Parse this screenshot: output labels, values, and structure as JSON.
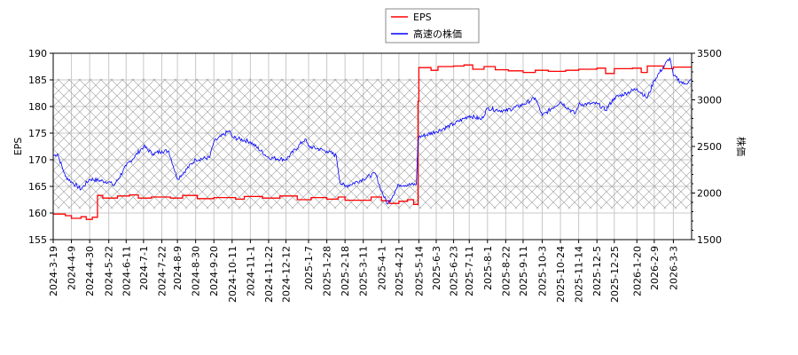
{
  "chart_data": {
    "type": "line",
    "title": "",
    "xlabel": "",
    "ylabel_left": "EPS",
    "ylabel_right": "株価",
    "ylim_left": [
      155,
      190
    ],
    "ylim_right": [
      1500,
      3500
    ],
    "yticks_left": [
      155,
      160,
      165,
      170,
      175,
      180,
      185,
      190
    ],
    "yticks_right": [
      1500,
      2000,
      2500,
      3000,
      3500
    ],
    "xlim": [
      "2024-3-19",
      "2026-3-24"
    ],
    "xticks": [
      "2024-3-19",
      "2024-4-9",
      "2024-4-30",
      "2024-5-22",
      "2024-6-11",
      "2024-7-1",
      "2024-7-22",
      "2024-8-9",
      "2024-8-30",
      "2024-9-20",
      "2024-10-11",
      "2024-11-1",
      "2024-11-22",
      "2024-12-12",
      "2025-1-7",
      "2025-1-28",
      "2025-2-18",
      "2025-3-11",
      "2025-4-1",
      "2025-4-21",
      "2025-5-14",
      "2025-6-3",
      "2025-6-23",
      "2025-7-11",
      "2025-8-1",
      "2025-8-22",
      "2025-9-11",
      "2025-10-3",
      "2025-10-24",
      "2025-11-14",
      "2025-12-5",
      "2025-12-25",
      "2026-1-20",
      "2026-2-9",
      "2026-3-3"
    ],
    "grid": true,
    "legend_placement": "top-center",
    "shaded_range_left": [
      160.8,
      185.2
    ],
    "series": [
      {
        "name": "EPS",
        "axis": "left",
        "color": "#ff0000",
        "step": true,
        "points": [
          [
            "2024-3-19",
            159.8
          ],
          [
            "2024-4-2",
            159.5
          ],
          [
            "2024-4-9",
            159.0
          ],
          [
            "2024-4-20",
            159.3
          ],
          [
            "2024-4-26",
            158.8
          ],
          [
            "2024-5-3",
            159.2
          ],
          [
            "2024-5-9",
            163.3
          ],
          [
            "2024-5-15",
            162.8
          ],
          [
            "2024-6-1",
            163.2
          ],
          [
            "2024-6-15",
            163.4
          ],
          [
            "2024-6-25",
            162.8
          ],
          [
            "2024-7-10",
            163.0
          ],
          [
            "2024-8-1",
            162.8
          ],
          [
            "2024-8-15",
            163.3
          ],
          [
            "2024-9-1",
            162.7
          ],
          [
            "2024-9-20",
            162.9
          ],
          [
            "2024-10-15",
            162.6
          ],
          [
            "2024-10-25",
            163.1
          ],
          [
            "2024-11-15",
            162.8
          ],
          [
            "2024-12-5",
            163.2
          ],
          [
            "2024-12-25",
            162.5
          ],
          [
            "2025-1-10",
            162.9
          ],
          [
            "2025-1-28",
            162.6
          ],
          [
            "2025-2-10",
            163.0
          ],
          [
            "2025-2-18",
            162.4
          ],
          [
            "2025-3-11",
            162.4
          ],
          [
            "2025-3-20",
            163.0
          ],
          [
            "2025-4-1",
            162.3
          ],
          [
            "2025-4-10",
            161.8
          ],
          [
            "2025-4-21",
            162.2
          ],
          [
            "2025-5-1",
            162.5
          ],
          [
            "2025-5-8",
            161.6
          ],
          [
            "2025-5-13",
            181.0
          ],
          [
            "2025-5-14",
            187.3
          ],
          [
            "2025-5-28",
            186.8
          ],
          [
            "2025-6-5",
            187.5
          ],
          [
            "2025-6-23",
            187.6
          ],
          [
            "2025-7-5",
            187.8
          ],
          [
            "2025-7-15",
            187.0
          ],
          [
            "2025-7-28",
            187.5
          ],
          [
            "2025-8-10",
            186.9
          ],
          [
            "2025-8-25",
            186.7
          ],
          [
            "2025-9-11",
            186.4
          ],
          [
            "2025-9-25",
            186.8
          ],
          [
            "2025-10-10",
            186.6
          ],
          [
            "2025-10-30",
            186.8
          ],
          [
            "2025-11-14",
            187.0
          ],
          [
            "2025-12-5",
            187.2
          ],
          [
            "2025-12-15",
            186.2
          ],
          [
            "2025-12-25",
            187.1
          ],
          [
            "2026-1-15",
            187.2
          ],
          [
            "2026-1-25",
            186.4
          ],
          [
            "2026-2-1",
            187.6
          ],
          [
            "2026-2-20",
            187.1
          ],
          [
            "2026-3-3",
            187.4
          ],
          [
            "2026-3-24",
            187.5
          ]
        ]
      },
      {
        "name": "高速の株価",
        "axis": "right",
        "color": "#0000ff",
        "points": [
          [
            "2024-3-19",
            2400
          ],
          [
            "2024-3-24",
            2420
          ],
          [
            "2024-4-2",
            2180
          ],
          [
            "2024-4-9",
            2120
          ],
          [
            "2024-4-20",
            2040
          ],
          [
            "2024-4-30",
            2150
          ],
          [
            "2024-5-22",
            2120
          ],
          [
            "2024-5-28",
            2080
          ],
          [
            "2024-6-11",
            2290
          ],
          [
            "2024-7-1",
            2500
          ],
          [
            "2024-7-12",
            2420
          ],
          [
            "2024-7-22",
            2450
          ],
          [
            "2024-7-30",
            2450
          ],
          [
            "2024-8-9",
            2150
          ],
          [
            "2024-8-30",
            2360
          ],
          [
            "2024-9-15",
            2380
          ],
          [
            "2024-9-20",
            2550
          ],
          [
            "2024-10-8",
            2670
          ],
          [
            "2024-10-11",
            2600
          ],
          [
            "2024-11-1",
            2550
          ],
          [
            "2024-11-22",
            2380
          ],
          [
            "2024-12-12",
            2360
          ],
          [
            "2025-1-3",
            2580
          ],
          [
            "2025-1-7",
            2500
          ],
          [
            "2025-1-28",
            2450
          ],
          [
            "2025-2-8",
            2400
          ],
          [
            "2025-2-12",
            2120
          ],
          [
            "2025-2-18",
            2070
          ],
          [
            "2025-3-11",
            2150
          ],
          [
            "2025-3-25",
            2210
          ],
          [
            "2025-4-1",
            2020
          ],
          [
            "2025-4-8",
            1880
          ],
          [
            "2025-4-21",
            2090
          ],
          [
            "2025-5-11",
            2090
          ],
          [
            "2025-5-13",
            2550
          ],
          [
            "2025-5-14",
            2600
          ],
          [
            "2025-6-3",
            2660
          ],
          [
            "2025-6-23",
            2740
          ],
          [
            "2025-7-11",
            2830
          ],
          [
            "2025-7-25",
            2790
          ],
          [
            "2025-8-1",
            2910
          ],
          [
            "2025-8-22",
            2880
          ],
          [
            "2025-9-11",
            2950
          ],
          [
            "2025-9-25",
            3020
          ],
          [
            "2025-10-3",
            2830
          ],
          [
            "2025-10-24",
            2980
          ],
          [
            "2025-11-10",
            2850
          ],
          [
            "2025-11-14",
            2950
          ],
          [
            "2025-12-5",
            2960
          ],
          [
            "2025-12-15",
            2890
          ],
          [
            "2025-12-25",
            3020
          ],
          [
            "2026-1-20",
            3120
          ],
          [
            "2026-2-1",
            3020
          ],
          [
            "2026-2-9",
            3210
          ],
          [
            "2026-2-20",
            3360
          ],
          [
            "2026-2-27",
            3450
          ],
          [
            "2026-3-3",
            3260
          ],
          [
            "2026-3-15",
            3170
          ],
          [
            "2026-3-24",
            3210
          ]
        ]
      }
    ]
  }
}
